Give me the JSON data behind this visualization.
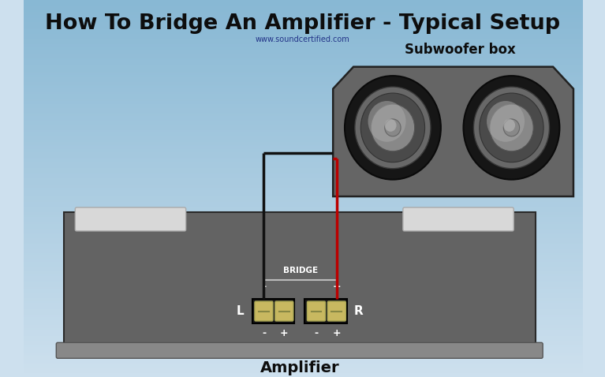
{
  "title": "How To Bridge An Amplifier - Typical Setup",
  "subtitle": "www.soundcertified.com",
  "amp_label": "Amplifier",
  "sub_label": "Subwoofer box",
  "bridge_label": "BRIDGE",
  "bg_top_color": "#cde0ee",
  "bg_bottom_color": "#88b8d4",
  "amp_body_color": "#636363",
  "amp_top_strip_color": "#d8d8d8",
  "amp_base_color": "#888888",
  "sub_box_color": "#656565",
  "terminal_block_color": "#1a1a1a",
  "terminal_color": "#c8b860",
  "wire_black": "#111111",
  "wire_red": "#bb0000",
  "label_color": "#0d0d0d",
  "white": "#ffffff",
  "bridge_line_color": "#bbbbbb",
  "subtitle_color": "#223388"
}
